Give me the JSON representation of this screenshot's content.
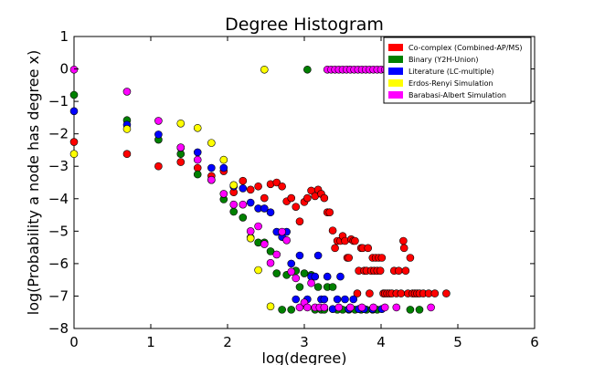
{
  "chart_data": {
    "type": "scatter",
    "title": "Degree Histogram",
    "xlabel": "log(degree)",
    "ylabel": "log(Probability a node has degree x)",
    "xlim": [
      0,
      6
    ],
    "ylim": [
      -8,
      1
    ],
    "xticks": [
      "0",
      "1",
      "2",
      "3",
      "4",
      "5",
      "6"
    ],
    "yticks": [
      "1",
      "0",
      "−1",
      "−2",
      "−3",
      "−4",
      "−5",
      "−6",
      "−7",
      "−8"
    ],
    "grid": false,
    "legend_position": "top-right",
    "series": [
      {
        "name": "Co-complex (Combined-AP/MS)",
        "color": "#ff0000",
        "points": [
          [
            0,
            -2.25
          ],
          [
            0.69,
            -2.62
          ],
          [
            1.1,
            -3
          ],
          [
            1.39,
            -2.87
          ],
          [
            1.61,
            -3.05
          ],
          [
            1.79,
            -3.3
          ],
          [
            1.95,
            -3.15
          ],
          [
            2.08,
            -3.8
          ],
          [
            2.2,
            -3.45
          ],
          [
            2.3,
            -3.72
          ],
          [
            2.4,
            -3.62
          ],
          [
            2.48,
            -3.98
          ],
          [
            2.56,
            -3.55
          ],
          [
            2.64,
            -3.5
          ],
          [
            2.71,
            -3.62
          ],
          [
            2.77,
            -4.08
          ],
          [
            2.83,
            -3.98
          ],
          [
            2.89,
            -4.25
          ],
          [
            2.94,
            -4.7
          ],
          [
            3.0,
            -4.1
          ],
          [
            3.04,
            -3.98
          ],
          [
            3.09,
            -3.75
          ],
          [
            3.14,
            -3.92
          ],
          [
            3.18,
            -3.72
          ],
          [
            3.22,
            -3.85
          ],
          [
            3.26,
            -3.98
          ],
          [
            3.3,
            -4.42
          ],
          [
            3.33,
            -4.42
          ],
          [
            3.37,
            -4.98
          ],
          [
            3.4,
            -5.52
          ],
          [
            3.43,
            -5.3
          ],
          [
            3.47,
            -5.3
          ],
          [
            3.5,
            -5.15
          ],
          [
            3.53,
            -5.3
          ],
          [
            3.56,
            -5.82
          ],
          [
            3.58,
            -5.82
          ],
          [
            3.61,
            -5.25
          ],
          [
            3.64,
            -5.3
          ],
          [
            3.66,
            -5.3
          ],
          [
            3.69,
            -6.92
          ],
          [
            3.71,
            -6.22
          ],
          [
            3.74,
            -5.52
          ],
          [
            3.76,
            -5.52
          ],
          [
            3.78,
            -6.22
          ],
          [
            3.81,
            -6.22
          ],
          [
            3.83,
            -5.52
          ],
          [
            3.85,
            -6.92
          ],
          [
            3.87,
            -6.22
          ],
          [
            3.89,
            -5.82
          ],
          [
            3.91,
            -6.22
          ],
          [
            3.93,
            -5.82
          ],
          [
            3.95,
            -6.22
          ],
          [
            3.97,
            -5.82
          ],
          [
            3.99,
            -6.22
          ],
          [
            4.01,
            -5.82
          ],
          [
            4.03,
            -6.92
          ],
          [
            4.05,
            -6.92
          ],
          [
            4.08,
            -6.92
          ],
          [
            4.11,
            -6.92
          ],
          [
            4.14,
            -6.92
          ],
          [
            4.17,
            -6.22
          ],
          [
            4.2,
            -6.92
          ],
          [
            4.23,
            -6.22
          ],
          [
            4.26,
            -6.92
          ],
          [
            4.29,
            -5.3
          ],
          [
            4.3,
            -5.52
          ],
          [
            4.32,
            -6.22
          ],
          [
            4.35,
            -6.92
          ],
          [
            4.38,
            -5.82
          ],
          [
            4.41,
            -6.92
          ],
          [
            4.44,
            -6.92
          ],
          [
            4.47,
            -6.92
          ],
          [
            4.5,
            -6.92
          ],
          [
            4.55,
            -6.92
          ],
          [
            4.62,
            -6.92
          ],
          [
            4.7,
            -6.92
          ],
          [
            4.85,
            -6.92
          ]
        ]
      },
      {
        "name": "Binary (Y2H-Union)",
        "color": "#008000",
        "points": [
          [
            0,
            -0.8
          ],
          [
            0.69,
            -1.58
          ],
          [
            1.1,
            -2.18
          ],
          [
            1.39,
            -2.62
          ],
          [
            1.61,
            -3.25
          ],
          [
            1.79,
            -3.42
          ],
          [
            1.95,
            -4.02
          ],
          [
            2.08,
            -4.4
          ],
          [
            2.2,
            -4.58
          ],
          [
            2.3,
            -5.2
          ],
          [
            2.4,
            -5.35
          ],
          [
            2.48,
            -5.35
          ],
          [
            2.56,
            -5.62
          ],
          [
            2.64,
            -6.3
          ],
          [
            2.71,
            -7.42
          ],
          [
            2.77,
            -6.35
          ],
          [
            2.83,
            -7.42
          ],
          [
            2.89,
            -6.22
          ],
          [
            2.94,
            -6.72
          ],
          [
            3.0,
            -6.3
          ],
          [
            3.04,
            -0.02
          ],
          [
            3.09,
            -6.35
          ],
          [
            3.14,
            -7.42
          ],
          [
            3.18,
            -6.72
          ],
          [
            3.22,
            -7.42
          ],
          [
            3.26,
            -7.42
          ],
          [
            3.3,
            -6.72
          ],
          [
            3.37,
            -6.72
          ],
          [
            3.43,
            -7.42
          ],
          [
            3.5,
            -7.42
          ],
          [
            3.58,
            -7.42
          ],
          [
            3.66,
            -7.42
          ],
          [
            3.74,
            -7.42
          ],
          [
            3.81,
            -7.42
          ],
          [
            3.89,
            -7.42
          ],
          [
            3.95,
            -7.42
          ],
          [
            4.38,
            -7.42
          ],
          [
            4.5,
            -7.42
          ]
        ]
      },
      {
        "name": "Literature (LC-multiple)",
        "color": "#0000ff",
        "points": [
          [
            0,
            -1.3
          ],
          [
            0.69,
            -1.72
          ],
          [
            1.1,
            -2.02
          ],
          [
            1.39,
            -2.43
          ],
          [
            1.61,
            -2.57
          ],
          [
            1.79,
            -3.05
          ],
          [
            1.95,
            -3.05
          ],
          [
            2.08,
            -3.62
          ],
          [
            2.2,
            -3.68
          ],
          [
            2.3,
            -4.12
          ],
          [
            2.4,
            -4.3
          ],
          [
            2.48,
            -4.3
          ],
          [
            2.56,
            -4.42
          ],
          [
            2.64,
            -5.02
          ],
          [
            2.71,
            -5.18
          ],
          [
            2.77,
            -5.02
          ],
          [
            2.83,
            -6.0
          ],
          [
            2.89,
            -7.1
          ],
          [
            2.94,
            -5.75
          ],
          [
            3.04,
            -7.1
          ],
          [
            3.09,
            -6.4
          ],
          [
            3.14,
            -6.4
          ],
          [
            3.18,
            -5.75
          ],
          [
            3.22,
            -7.1
          ],
          [
            3.26,
            -7.1
          ],
          [
            3.3,
            -6.4
          ],
          [
            3.37,
            -7.4
          ],
          [
            3.43,
            -7.1
          ],
          [
            3.47,
            -6.4
          ],
          [
            3.53,
            -7.1
          ],
          [
            3.58,
            -7.4
          ],
          [
            3.64,
            -7.1
          ],
          [
            3.71,
            -7.4
          ],
          [
            3.78,
            -7.4
          ],
          [
            3.89,
            -7.4
          ],
          [
            4.01,
            -7.4
          ]
        ]
      },
      {
        "name": "Erdos-Renyi Simulation",
        "color": "#ffff00",
        "points": [
          [
            0,
            -2.62
          ],
          [
            0.69,
            -1.85
          ],
          [
            1.39,
            -1.68
          ],
          [
            1.61,
            -1.82
          ],
          [
            1.79,
            -2.28
          ],
          [
            1.95,
            -2.8
          ],
          [
            2.08,
            -3.58
          ],
          [
            2.3,
            -5.22
          ],
          [
            2.4,
            -6.2
          ],
          [
            2.48,
            -0.02
          ],
          [
            2.56,
            -7.32
          ]
        ]
      },
      {
        "name": "Barabasi-Albert Simulation",
        "color": "#ff00ff",
        "points": [
          [
            0,
            -0.02
          ],
          [
            0.69,
            -0.7
          ],
          [
            1.1,
            -1.6
          ],
          [
            1.39,
            -2.42
          ],
          [
            1.61,
            -2.8
          ],
          [
            1.79,
            -3.42
          ],
          [
            1.95,
            -3.85
          ],
          [
            2.08,
            -4.18
          ],
          [
            2.2,
            -4.18
          ],
          [
            2.3,
            -5.0
          ],
          [
            2.4,
            -4.85
          ],
          [
            2.48,
            -5.4
          ],
          [
            2.56,
            -5.98
          ],
          [
            2.64,
            -5.72
          ],
          [
            2.71,
            -5.02
          ],
          [
            2.77,
            -5.28
          ],
          [
            2.83,
            -6.25
          ],
          [
            2.89,
            -6.45
          ],
          [
            2.94,
            -7.35
          ],
          [
            3.0,
            -7.2
          ],
          [
            3.04,
            -7.35
          ],
          [
            3.09,
            -6.6
          ],
          [
            3.14,
            -7.35
          ],
          [
            3.2,
            -7.35
          ],
          [
            3.26,
            -7.35
          ],
          [
            3.3,
            -0.02
          ],
          [
            3.35,
            -0.02
          ],
          [
            3.4,
            -0.02
          ],
          [
            3.45,
            -0.02
          ],
          [
            3.5,
            -0.02
          ],
          [
            3.55,
            -0.02
          ],
          [
            3.6,
            -0.02
          ],
          [
            3.65,
            -0.02
          ],
          [
            3.7,
            -0.02
          ],
          [
            3.75,
            -0.02
          ],
          [
            3.8,
            -0.02
          ],
          [
            3.85,
            -0.02
          ],
          [
            3.9,
            -0.02
          ],
          [
            3.95,
            -0.02
          ],
          [
            4.0,
            -0.02
          ],
          [
            4.05,
            -0.02
          ],
          [
            4.1,
            -0.02
          ],
          [
            3.45,
            -7.35
          ],
          [
            3.6,
            -7.35
          ],
          [
            3.75,
            -7.35
          ],
          [
            3.9,
            -7.35
          ],
          [
            4.05,
            -7.35
          ],
          [
            4.2,
            -7.35
          ],
          [
            4.65,
            -7.35
          ]
        ]
      }
    ]
  }
}
